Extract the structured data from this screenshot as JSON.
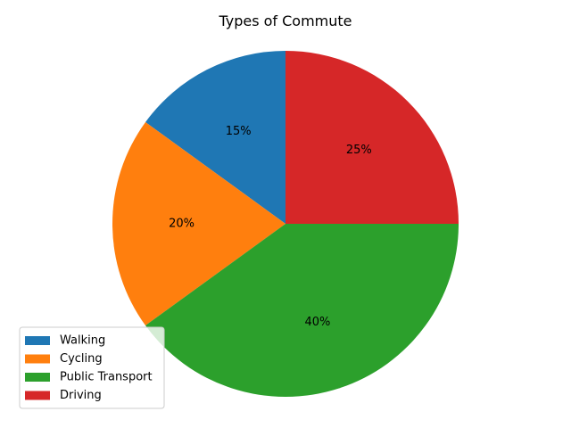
{
  "chart_data": {
    "type": "pie",
    "title": "Types of Commute",
    "labels": [
      "Walking",
      "Cycling",
      "Public Transport",
      "Driving"
    ],
    "values": [
      15,
      20,
      40,
      25
    ],
    "value_labels": [
      "15%",
      "20%",
      "40%",
      "25%"
    ],
    "colors": [
      "#1f77b4",
      "#ff7f0e",
      "#2ca02c",
      "#d62728"
    ],
    "start_angle_deg": 90,
    "direction": "counterclockwise",
    "legend_position": "lower-left"
  }
}
